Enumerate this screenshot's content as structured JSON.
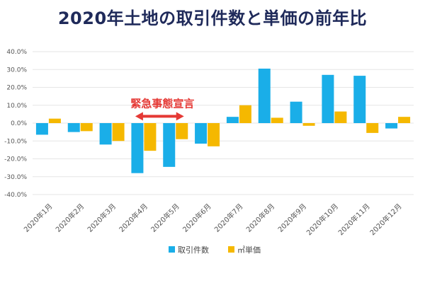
{
  "page": {
    "title": "2020年土地の取引件数と単価の前年比"
  },
  "chart_data": {
    "type": "bar",
    "title": "2020年土地の取引件数と単価の前年比",
    "categories": [
      "2020年1月",
      "2020年2月",
      "2020年3月",
      "2020年4月",
      "2020年5月",
      "2020年6月",
      "2020年7月",
      "2020年8月",
      "2020年9月",
      "2020年10月",
      "2020年11月",
      "2020年12月"
    ],
    "series": [
      {
        "name": "取引件数",
        "color": "#1aaee8",
        "values": [
          -6.5,
          -5.0,
          -12.0,
          -28.0,
          -24.5,
          -11.5,
          3.5,
          30.5,
          12.0,
          27.0,
          26.5,
          -3.0
        ]
      },
      {
        "name": "㎡単価",
        "color": "#f5b800",
        "values": [
          2.5,
          -4.5,
          -10.0,
          -15.5,
          -9.0,
          -13.0,
          10.0,
          3.0,
          -1.5,
          6.5,
          -5.5,
          3.5
        ]
      }
    ],
    "y_ticks": [
      "40.0%",
      "30.0%",
      "20.0%",
      "10.0%",
      "0.0%",
      "-10.0%",
      "-20.0%",
      "-30.0%",
      "-40.0%"
    ],
    "ylim": [
      -40,
      40
    ],
    "grid": true,
    "legend_position": "bottom-center",
    "annotation": {
      "text": "緊急事態宣言",
      "color": "#e53935",
      "from_category": 3,
      "to_category": 4
    }
  }
}
